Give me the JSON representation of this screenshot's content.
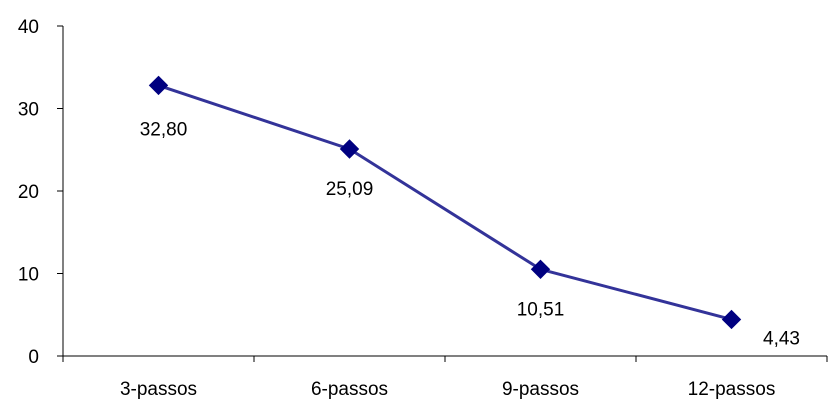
{
  "chart_data": {
    "type": "line",
    "categories": [
      "3-passos",
      "6-passos",
      "9-passos",
      "12-passos"
    ],
    "series": [
      {
        "values": [
          32.8,
          25.09,
          10.51,
          4.43
        ],
        "data_labels": [
          "32,80",
          "25,09",
          "10,51",
          "4,43"
        ],
        "color": "#333399",
        "marker_color": "#000080",
        "marker": "diamond"
      }
    ],
    "y_ticks": [
      "0",
      "10",
      "20",
      "30",
      "40"
    ],
    "ylim": [
      0,
      40
    ],
    "grid": false,
    "legend": "none",
    "title": "",
    "xlabel": "",
    "ylabel": ""
  }
}
